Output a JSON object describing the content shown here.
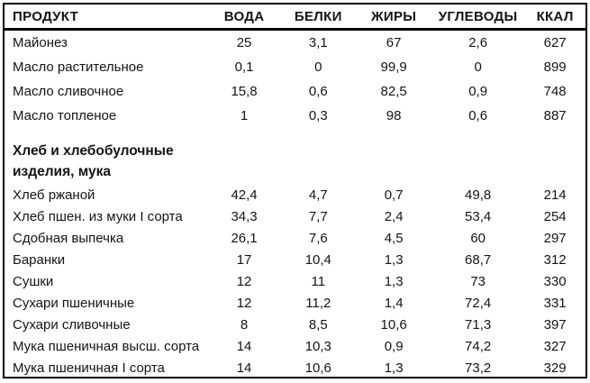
{
  "page": {
    "background_color": "#ffffff",
    "border_color": "#000000",
    "text_color": "#141414"
  },
  "table": {
    "columns": [
      {
        "key": "product",
        "label": "ПРОДУКТ"
      },
      {
        "key": "water",
        "label": "ВОДА"
      },
      {
        "key": "proteins",
        "label": "БЕЛКИ"
      },
      {
        "key": "fats",
        "label": "ЖИРЫ"
      },
      {
        "key": "carbs",
        "label": "УГЛЕВОДЫ"
      },
      {
        "key": "kcal",
        "label": "ККАЛ"
      }
    ],
    "sections": [
      {
        "title_lines": [],
        "rows": [
          {
            "product": "Майонез",
            "values": [
              "25",
              "3,1",
              "67",
              "2,6",
              "627"
            ]
          },
          {
            "product": "Масло растительное",
            "values": [
              "0,1",
              "0",
              "99,9",
              "0",
              "899"
            ]
          },
          {
            "product": "Масло сливочное",
            "values": [
              "15,8",
              "0,6",
              "82,5",
              "0,9",
              "748"
            ]
          },
          {
            "product": "Масло топленое",
            "values": [
              "1",
              "0,3",
              "98",
              "0,6",
              "887"
            ]
          }
        ]
      },
      {
        "title_lines": [
          "Хлеб и хлебобулочные",
          "изделия, мука"
        ],
        "rows": [
          {
            "product": "Хлеб ржаной",
            "values": [
              "42,4",
              "4,7",
              "0,7",
              "49,8",
              "214"
            ]
          },
          {
            "product": "Хлеб пшен. из муки I сорта",
            "values": [
              "34,3",
              "7,7",
              "2,4",
              "53,4",
              "254"
            ]
          },
          {
            "product": "Сдобная выпечка",
            "values": [
              "26,1",
              "7,6",
              "4,5",
              "60",
              "297"
            ]
          },
          {
            "product": "Баранки",
            "values": [
              "17",
              "10,4",
              "1,3",
              "68,7",
              "312"
            ]
          },
          {
            "product": "Сушки",
            "values": [
              "12",
              "11",
              "1,3",
              "73",
              "330"
            ]
          },
          {
            "product": "Сухари пшеничные",
            "values": [
              "12",
              "11,2",
              "1,4",
              "72,4",
              "331"
            ]
          },
          {
            "product": "Сухари сливочные",
            "values": [
              "8",
              "8,5",
              "10,6",
              "71,3",
              "397"
            ]
          },
          {
            "product": "Мука пшеничная высш. сорта",
            "values": [
              "14",
              "10,3",
              "0,9",
              "74,2",
              "327"
            ]
          },
          {
            "product": "Мука пшеничная I сорта",
            "values": [
              "14",
              "10,6",
              "1,3",
              "73,2",
              "329"
            ]
          }
        ]
      }
    ]
  }
}
